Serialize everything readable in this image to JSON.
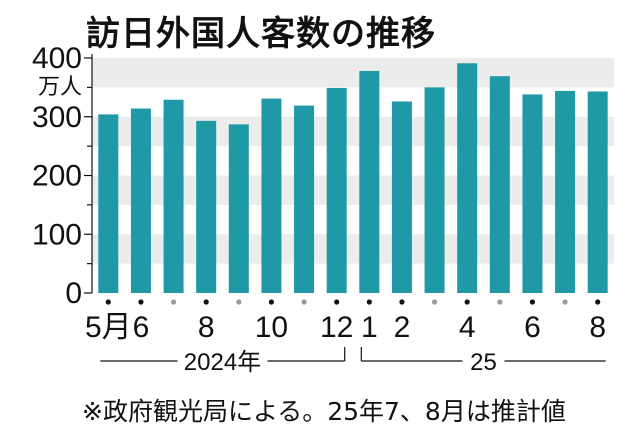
{
  "title": "訪日外国人客数の推移",
  "note": "※政府観光局による。25年7、8月は推計値",
  "chart_data": {
    "type": "bar",
    "categories": [
      "2024-05",
      "2024-06",
      "2024-07",
      "2024-08",
      "2024-09",
      "2024-10",
      "2024-11",
      "2024-12",
      "2025-01",
      "2025-02",
      "2025-03",
      "2025-04",
      "2025-05",
      "2025-06",
      "2025-07",
      "2025-08"
    ],
    "values": [
      304,
      314,
      329,
      293,
      287,
      331,
      319,
      349,
      378,
      326,
      350,
      391,
      369,
      338,
      344,
      343
    ],
    "ylim": [
      0,
      400
    ],
    "yticks": [
      0,
      100,
      200,
      300,
      400
    ],
    "yunit": "万人",
    "xtick_labels": [
      "5月",
      "6",
      "",
      "8",
      "",
      "10",
      "",
      "12",
      "1",
      "2",
      "",
      "4",
      "",
      "6",
      "",
      "8"
    ],
    "year_labels": [
      {
        "label": "2024年",
        "start": 0,
        "end": 7
      },
      {
        "label": "25",
        "start": 8,
        "end": 15
      }
    ],
    "colors": {
      "bar": "#1f99a6",
      "band": "#ececec",
      "dot_main": "#111111",
      "dot_minor": "#9a9a9a"
    }
  }
}
